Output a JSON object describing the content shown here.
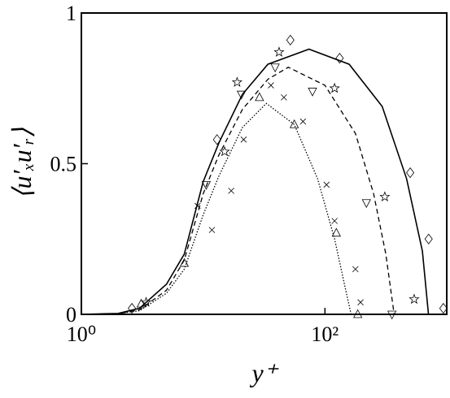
{
  "chart_data": {
    "type": "line",
    "xlabel": "y⁺",
    "ylabel": "⟨u′ₓu′ᵣ⟩",
    "xscale": "log",
    "xlim": [
      1,
      1000
    ],
    "ylim": [
      0,
      1
    ],
    "xticks": [
      {
        "value": 1,
        "label": "10⁰"
      },
      {
        "value": 100,
        "label": "10²"
      }
    ],
    "yticks": [
      0,
      0.5,
      1
    ],
    "color": "#000000",
    "series": [
      {
        "style": "solid",
        "x": [
          1,
          2,
          3,
          5,
          7,
          10,
          13.5,
          21,
          34,
          74,
          158,
          295,
          468,
          631,
          708
        ],
        "values": [
          0,
          0.003,
          0.02,
          0.1,
          0.2,
          0.44,
          0.57,
          0.73,
          0.83,
          0.88,
          0.83,
          0.69,
          0.45,
          0.21,
          0
        ]
      },
      {
        "style": "dashed",
        "x": [
          1,
          2,
          3,
          5,
          7,
          10,
          13.5,
          21,
          34,
          50,
          100,
          178,
          251,
          316,
          370
        ],
        "values": [
          0,
          0.002,
          0.015,
          0.08,
          0.18,
          0.4,
          0.53,
          0.68,
          0.78,
          0.82,
          0.76,
          0.6,
          0.4,
          0.2,
          0
        ]
      },
      {
        "style": "dotted",
        "x": [
          1,
          2,
          3,
          5,
          7,
          10,
          13.5,
          21,
          33,
          56,
          87,
          120,
          150,
          164
        ],
        "values": [
          0,
          0.002,
          0.012,
          0.07,
          0.15,
          0.33,
          0.46,
          0.62,
          0.7,
          0.63,
          0.45,
          0.25,
          0.07,
          0
        ]
      },
      {
        "marker": "diamond",
        "x": [
          2.6,
          13,
          52,
          132,
          501,
          710,
          938
        ],
        "values": [
          0.02,
          0.58,
          0.91,
          0.85,
          0.47,
          0.25,
          0.02
        ]
      },
      {
        "marker": "star",
        "x": [
          3.4,
          15,
          19,
          42,
          120,
          310,
          540
        ],
        "values": [
          0.04,
          0.54,
          0.77,
          0.87,
          0.75,
          0.39,
          0.05
        ]
      },
      {
        "marker": "triangle-down",
        "x": [
          10.6,
          20.6,
          39,
          79,
          219,
          355
        ],
        "values": [
          0.43,
          0.73,
          0.82,
          0.74,
          0.37,
          0
        ]
      },
      {
        "marker": "triangle-up",
        "x": [
          3.1,
          7,
          29,
          56,
          124,
          186
        ],
        "values": [
          0.035,
          0.17,
          0.72,
          0.63,
          0.27,
          0
        ]
      },
      {
        "marker": "cross",
        "x": [
          9,
          11.8,
          17,
          21.5,
          36,
          46,
          66,
          103,
          120,
          178,
          196
        ],
        "values": [
          0.36,
          0.28,
          0.41,
          0.58,
          0.76,
          0.72,
          0.64,
          0.43,
          0.31,
          0.15,
          0.04
        ]
      }
    ]
  }
}
